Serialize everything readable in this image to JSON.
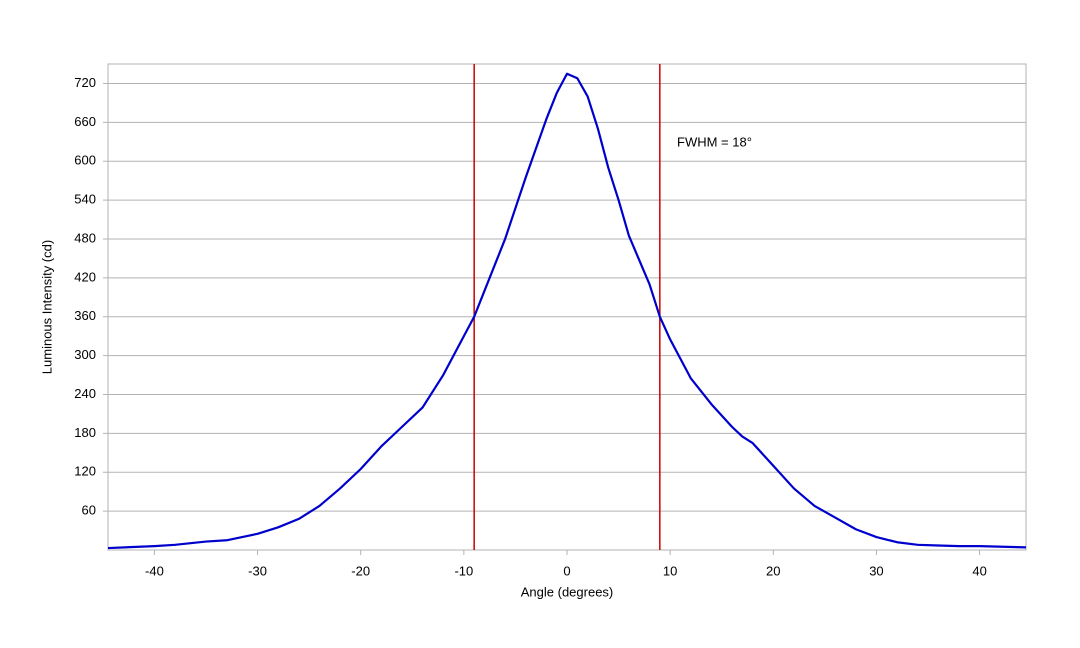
{
  "chart_data": {
    "type": "line",
    "xlabel": "Angle (degrees)",
    "ylabel": "Luminous Intensity (cd)",
    "annotation": "FWHM = 18°",
    "x": [
      -44.5,
      -40,
      -38,
      -35,
      -33,
      -30,
      -28,
      -26,
      -24,
      -22,
      -20,
      -18,
      -16,
      -14,
      -12,
      -10,
      -9,
      -8,
      -6,
      -4,
      -2,
      -1,
      0,
      1,
      2,
      3,
      4,
      5,
      6,
      8,
      9,
      10,
      12,
      14,
      16,
      17,
      18,
      20,
      22,
      24,
      26,
      28,
      30,
      32,
      34,
      36,
      38,
      40,
      44.5
    ],
    "series": [
      {
        "color": "#0000cc",
        "values": [
          3,
          6,
          8,
          13,
          15,
          25,
          35,
          48,
          68,
          95,
          125,
          160,
          190,
          220,
          270,
          330,
          360,
          400,
          480,
          575,
          665,
          705,
          735,
          728,
          700,
          650,
          590,
          540,
          485,
          410,
          360,
          325,
          265,
          225,
          190,
          175,
          165,
          130,
          95,
          68,
          50,
          32,
          20,
          12,
          8,
          7,
          6,
          6,
          4
        ]
      }
    ],
    "vlines": [
      -9,
      9
    ],
    "vline_color": "#cc0000",
    "xlim": [
      -44.5,
      44.5
    ],
    "xticks": [
      -40,
      -30,
      -20,
      -10,
      0,
      10,
      20,
      30,
      40
    ],
    "ylim": [
      0,
      750
    ],
    "yticks": [
      60,
      120,
      180,
      240,
      300,
      360,
      420,
      480,
      540,
      600,
      660,
      720
    ],
    "grid": true
  }
}
